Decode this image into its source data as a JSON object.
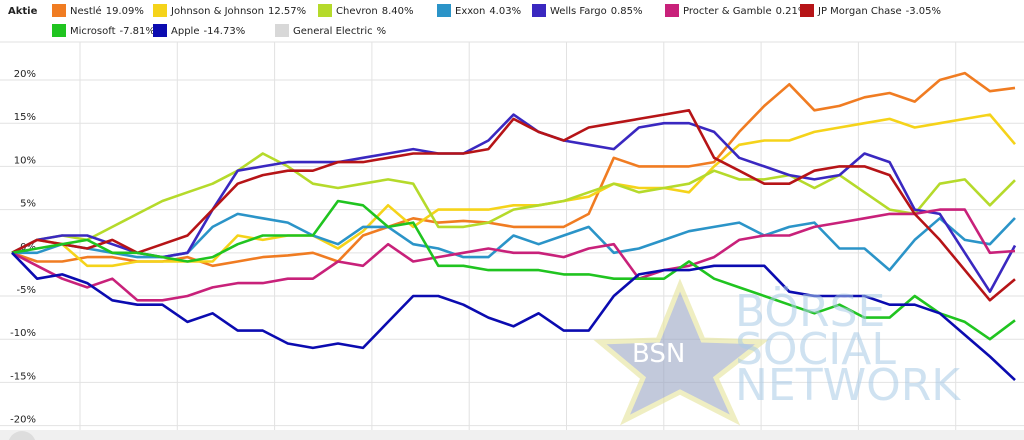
{
  "chart_data": {
    "type": "line",
    "legend_title": "Aktie",
    "watermark": {
      "badge": "BSN",
      "lines": [
        "BÖRSE",
        "SOCIAL",
        "NETWORK"
      ]
    },
    "x": [
      0,
      1,
      2,
      3,
      4,
      5,
      6,
      7,
      8,
      9,
      10,
      11,
      12,
      13,
      14,
      15,
      16,
      17,
      18,
      19,
      20,
      21,
      22,
      23,
      24,
      25,
      26,
      27,
      28,
      29,
      30,
      31,
      32,
      33,
      34,
      35,
      36,
      37,
      38,
      39,
      40
    ],
    "xlim": [
      0,
      40
    ],
    "ylim": [
      -21.2,
      24.4
    ],
    "yticks": [
      {
        "value": 20,
        "label": "20%"
      },
      {
        "value": 15,
        "label": "15%"
      },
      {
        "value": 10,
        "label": "10%"
      },
      {
        "value": 5,
        "label": "5%"
      },
      {
        "value": 0,
        "label": "0%"
      },
      {
        "value": -5,
        "label": "-5%"
      },
      {
        "value": -10,
        "label": "-10%"
      },
      {
        "value": -15,
        "label": "-15%"
      },
      {
        "value": -20,
        "label": "-20%"
      }
    ],
    "grid": true,
    "series": [
      {
        "name": "Nestlé",
        "change": "19.09%",
        "color": "#f07c22",
        "values": [
          0,
          -1,
          -1,
          -0.5,
          -0.5,
          -1,
          -1,
          -0.5,
          -1.5,
          -1,
          -0.5,
          -0.3,
          0,
          -1,
          2,
          3,
          4,
          3.5,
          3.7,
          3.5,
          3,
          3,
          3,
          4.5,
          11,
          10,
          10,
          10,
          10.5,
          14,
          17,
          19.5,
          16.5,
          17,
          18,
          18.5,
          17.5,
          20,
          20.8,
          18.7,
          19.09
        ]
      },
      {
        "name": "Johnson & Johnson",
        "change": "12.57%",
        "color": "#f5d31a",
        "values": [
          0,
          1.5,
          1,
          -1.5,
          -1.5,
          -1,
          -1,
          -1,
          -1,
          2,
          1.5,
          2,
          2,
          0.5,
          2.5,
          5.5,
          3,
          5,
          5,
          5,
          5.5,
          5.5,
          6,
          6.5,
          8,
          7.5,
          7.5,
          7,
          10,
          12.5,
          13,
          13,
          14,
          14.5,
          15,
          15.5,
          14.5,
          15,
          15.5,
          16,
          12.57
        ]
      },
      {
        "name": "Chevron",
        "change": "8.40%",
        "color": "#b5da2b",
        "values": [
          0,
          1.5,
          2,
          1.5,
          3,
          4.5,
          6,
          7,
          8,
          9.5,
          11.5,
          10,
          8,
          7.5,
          8,
          8.5,
          8,
          3,
          3,
          3.5,
          5,
          5.5,
          6,
          7,
          8,
          7,
          7.5,
          8,
          9.5,
          8.5,
          8.5,
          9,
          7.5,
          9,
          7,
          5,
          4.5,
          8,
          8.5,
          5.5,
          8.4
        ]
      },
      {
        "name": "Exxon",
        "change": "4.03%",
        "color": "#2b94c8",
        "values": [
          0,
          0,
          1,
          0.5,
          0,
          -0.5,
          -0.5,
          0,
          3,
          4.5,
          4,
          3.5,
          2,
          1,
          3,
          3,
          1,
          0.5,
          -0.5,
          -0.5,
          2,
          1,
          2,
          3,
          0,
          0.5,
          1.5,
          2.5,
          3,
          3.5,
          2,
          3,
          3.5,
          0.5,
          0.5,
          -2,
          1.5,
          4,
          1.5,
          1,
          4.03
        ]
      },
      {
        "name": "Wells Fargo",
        "change": "0.85%",
        "color": "#3a28c0",
        "values": [
          0,
          1.5,
          2,
          2,
          1,
          0,
          -0.5,
          0,
          5,
          9.5,
          10,
          10.5,
          10.5,
          10.5,
          11,
          11.5,
          12,
          11.5,
          11.5,
          13,
          16,
          14,
          13,
          12.5,
          12,
          14.5,
          15,
          15,
          14,
          11,
          10,
          9,
          8.5,
          9,
          11.5,
          10.5,
          5,
          4.5,
          0,
          -4.5,
          0.85
        ]
      },
      {
        "name": "Procter & Gamble",
        "change": "0.21%",
        "color": "#c8217a",
        "values": [
          0,
          -1.5,
          -3,
          -4,
          -3,
          -5.5,
          -5.5,
          -5,
          -4,
          -3.5,
          -3.5,
          -3,
          -3,
          -1,
          -1.5,
          1,
          -1,
          -0.5,
          0,
          0.5,
          0,
          0,
          -0.5,
          0.5,
          1,
          -3,
          -2,
          -1.5,
          -0.5,
          1.5,
          2,
          2,
          3,
          3.5,
          4,
          4.5,
          4.5,
          5,
          5,
          0,
          0.21
        ]
      },
      {
        "name": "JP Morgan Chase",
        "change": "-3.05%",
        "color": "#b61417",
        "values": [
          0,
          1.5,
          1,
          0.5,
          1.5,
          0,
          1,
          2,
          5,
          8,
          9,
          9.5,
          9.5,
          10.5,
          10.5,
          11,
          11.5,
          11.5,
          11.5,
          12,
          15.5,
          14,
          13,
          14.5,
          15,
          15.5,
          16,
          16.5,
          11,
          9.5,
          8,
          8,
          9.5,
          10,
          10,
          9,
          4.5,
          1.5,
          -2,
          -5.5,
          -3.05
        ]
      },
      {
        "name": "Microsoft",
        "change": "-7.81%",
        "color": "#20c420",
        "values": [
          0,
          0.5,
          1,
          1.5,
          0,
          0,
          -0.5,
          -1,
          -0.5,
          1,
          2,
          2,
          2,
          6,
          5.5,
          3,
          3.5,
          -1.5,
          -1.5,
          -2,
          -2,
          -2,
          -2.5,
          -2.5,
          -3,
          -3,
          -3,
          -1,
          -3,
          -4,
          -5,
          -6,
          -7,
          -6,
          -7.5,
          -7.5,
          -5,
          -7,
          -8,
          -10,
          -7.81
        ]
      },
      {
        "name": "Apple",
        "change": "-14.73%",
        "color": "#0b0bb0",
        "values": [
          0,
          -3,
          -2.5,
          -3.5,
          -5.5,
          -6,
          -6,
          -8,
          -7,
          -9,
          -9,
          -10.5,
          -11,
          -10.5,
          -11,
          -8,
          -5,
          -5,
          -6,
          -7.5,
          -8.5,
          -7,
          -9,
          -9,
          -5,
          -2.5,
          -2,
          -2,
          -1.5,
          -1.5,
          -1.5,
          -4.5,
          -5,
          -5,
          -5,
          -6,
          -6,
          -7,
          -9.5,
          -12,
          -14.73
        ]
      },
      {
        "name": "General Electric",
        "change": "%",
        "color": "#d8d8d8",
        "values": [
          null,
          null,
          null,
          null,
          null,
          null,
          null,
          null,
          null,
          null,
          null,
          null,
          null,
          null,
          null,
          null,
          null,
          null,
          null,
          null,
          null,
          null,
          null,
          null,
          null,
          null,
          null,
          null,
          null,
          null,
          null,
          null,
          null,
          null,
          null,
          null,
          null,
          null,
          null,
          null,
          null
        ]
      }
    ]
  }
}
